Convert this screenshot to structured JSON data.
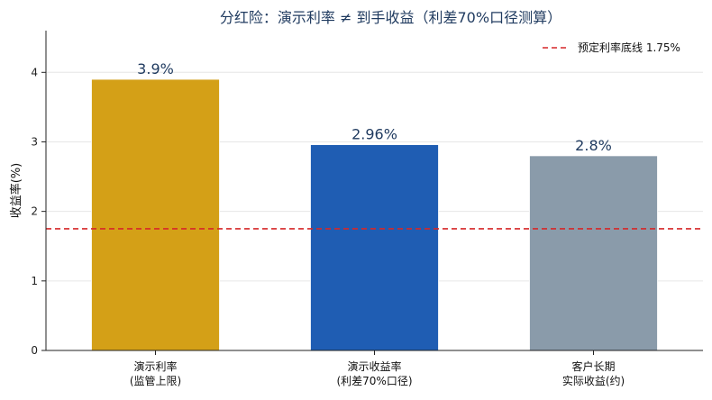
{
  "chart_data": {
    "type": "bar",
    "title": "分红险：演示利率 ≠ 到手收益（利差70%口径测算）",
    "ylabel": "收益率(%)",
    "xlabel": "",
    "ylim": [
      0,
      4.6
    ],
    "yticks": [
      0,
      1,
      2,
      3,
      4
    ],
    "grid": "horizontal",
    "legend_position": "top-right",
    "categories": [
      [
        "演示利率",
        "(监管上限)"
      ],
      [
        "演示收益率",
        "(利差70%口径)"
      ],
      [
        "客户长期",
        "实际收益(约)"
      ]
    ],
    "values": [
      3.9,
      2.96,
      2.8
    ],
    "value_labels": [
      "3.9%",
      "2.96%",
      "2.8%"
    ],
    "bar_colors": [
      "#D4A017",
      "#1F5DB3",
      "#8A9BAA"
    ],
    "reference_line": {
      "label": "预定利率底线 1.75%",
      "value": 1.75,
      "color": "#D62728",
      "style": "dashed"
    },
    "title_color": "#1F3A5F"
  }
}
